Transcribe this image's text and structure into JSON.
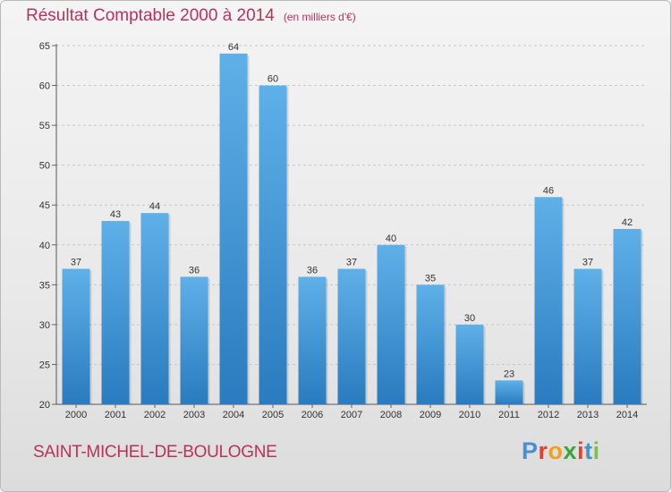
{
  "header": {
    "title": "Résultat Comptable 2000 à 2014",
    "subtitle": "(en milliers d'€)"
  },
  "footer": {
    "city": "SAINT-MICHEL-DE-BOULOGNE",
    "logo_letters": [
      "P",
      "r",
      "o",
      "x",
      "i",
      "t",
      "i"
    ]
  },
  "colors": {
    "title": "#b8325a",
    "bar_top": "#5fb0e8",
    "bar_bottom": "#2a7bbf",
    "logo": [
      "#4a8fd6",
      "#e8402a",
      "#f2a01c",
      "#3aa63a",
      "#e8402a",
      "#4a8fd6",
      "#7cc242"
    ]
  },
  "chart_data": {
    "type": "bar",
    "title": "Résultat Comptable 2000 à 2014",
    "xlabel": "",
    "ylabel": "",
    "categories": [
      "2000",
      "2001",
      "2002",
      "2003",
      "2004",
      "2005",
      "2006",
      "2007",
      "2008",
      "2009",
      "2010",
      "2011",
      "2012",
      "2013",
      "2014"
    ],
    "values": [
      37,
      43,
      44,
      36,
      64,
      60,
      36,
      37,
      40,
      35,
      30,
      23,
      46,
      37,
      42
    ],
    "ylim": [
      20,
      65
    ],
    "yticks": [
      20,
      25,
      30,
      35,
      40,
      45,
      50,
      55,
      60,
      65
    ],
    "grid": "horizontal dashed"
  }
}
